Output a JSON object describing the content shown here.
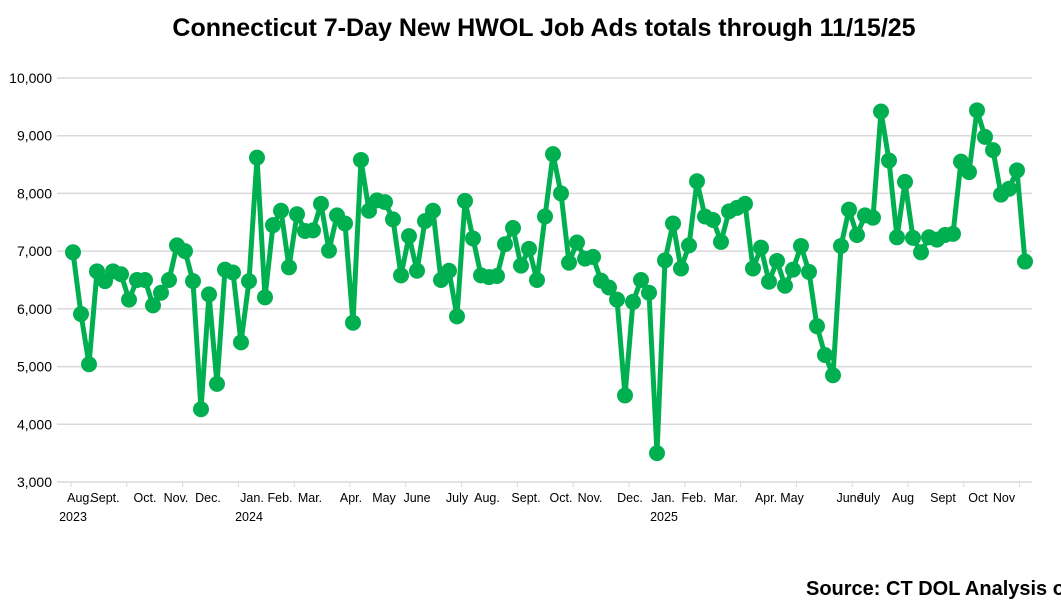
{
  "chart_data": {
    "type": "line",
    "title": "Connecticut 7-Day New HWOL Job Ads totals through 11/15/25",
    "xlabel": "",
    "ylabel": "",
    "ylim": [
      3000,
      10000
    ],
    "yticks": [
      "3,000",
      "4,000",
      "5,000",
      "6,000",
      "7,000",
      "8,000",
      "9,000",
      "10,000"
    ],
    "grid": true,
    "legend": "none",
    "color": "#00B050",
    "x_tick_labels": [
      "Aug.",
      "Sept.",
      "Oct.",
      "Nov.",
      "Dec.",
      "Jan.",
      "Feb.",
      "Mar.",
      "Apr.",
      "May",
      "June",
      "July",
      "Aug.",
      "Sept.",
      "Oct.",
      "Nov.",
      "Dec.",
      "Jan.",
      "Feb.",
      "Mar.",
      "Apr.",
      "May",
      "June",
      "July",
      "Aug",
      "Sept",
      "Oct",
      "Nov"
    ],
    "year_labels": [
      "2023",
      "2024",
      "2025"
    ],
    "values": [
      6980,
      5910,
      5040,
      6650,
      6480,
      6650,
      6600,
      6160,
      6500,
      6500,
      6060,
      6280,
      6500,
      7100,
      7000,
      6480,
      4260,
      6250,
      4700,
      6680,
      6630,
      5420,
      6480,
      8620,
      6200,
      7450,
      7700,
      6720,
      7640,
      7350,
      7360,
      7820,
      7010,
      7620,
      7480,
      5760,
      8580,
      7700,
      7880,
      7850,
      7550,
      6580,
      7260,
      6660,
      7520,
      7700,
      6500,
      6660,
      5870,
      7870,
      7220,
      6580,
      6550,
      6570,
      7120,
      7400,
      6750,
      7040,
      6500,
      7600,
      8680,
      8000,
      6800,
      7150,
      6870,
      6900,
      6490,
      6370,
      6160,
      4500,
      6120,
      6500,
      6280,
      3500,
      6840,
      7480,
      6700,
      7100,
      8210,
      7600,
      7540,
      7160,
      7690,
      7750,
      7820,
      6700,
      7060,
      6470,
      6830,
      6400,
      6680,
      7090,
      6640,
      5700,
      5200,
      4850,
      7090,
      7720,
      7280,
      7620,
      7580,
      9420,
      8570,
      7240,
      8200,
      7230,
      6980,
      7240,
      7200,
      7280,
      7300,
      8550,
      8370,
      9440,
      8980,
      8750,
      7980,
      8080,
      8400,
      6820
    ]
  },
  "footer": {
    "source": "Source: CT DOL Analysis of"
  }
}
